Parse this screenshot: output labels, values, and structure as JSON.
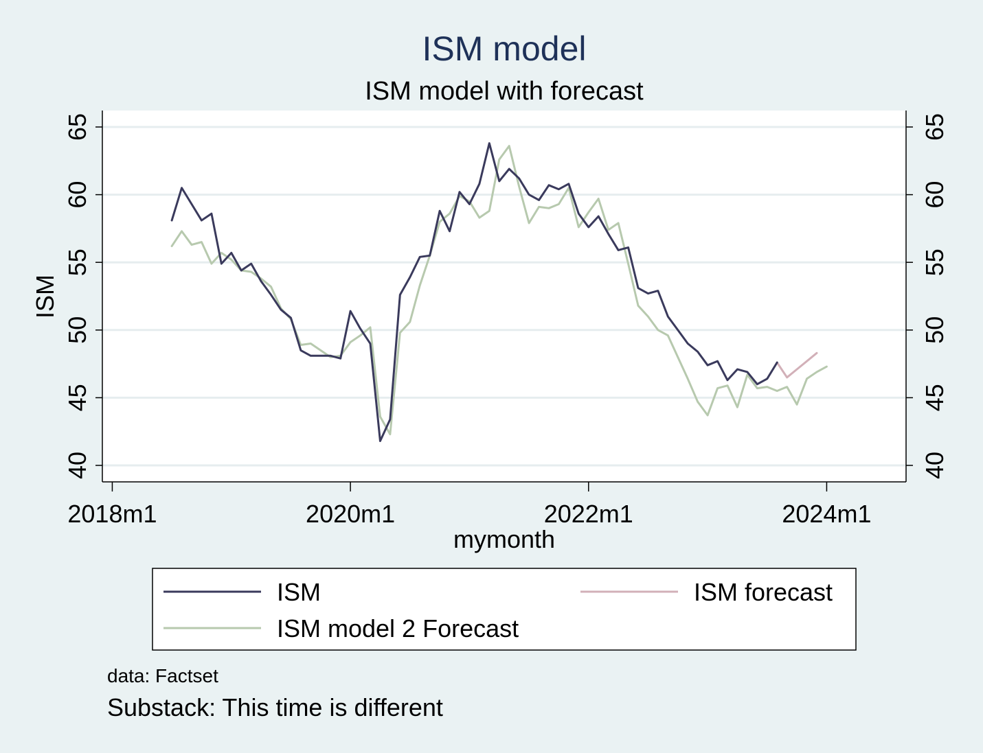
{
  "chart_data": {
    "type": "line",
    "title": "ISM model",
    "subtitle": "ISM model with forecast",
    "xlabel": "mymonth",
    "ylabel": "ISM",
    "ylim": [
      40,
      65
    ],
    "yticks": [
      40,
      45,
      50,
      55,
      60,
      65
    ],
    "xticks": [
      {
        "label": "2018m1",
        "year": 2018,
        "month": 1
      },
      {
        "label": "2020m1",
        "year": 2020,
        "month": 1
      },
      {
        "label": "2022m1",
        "year": 2022,
        "month": 1
      },
      {
        "label": "2024m1",
        "year": 2024,
        "month": 1
      }
    ],
    "xrange": {
      "start": {
        "year": 2017,
        "month": 12
      },
      "end": {
        "year": 2024,
        "month": 9
      }
    },
    "grid": true,
    "legend_position": "bottom",
    "series": [
      {
        "name": "ISM",
        "color": "#3a3a5c",
        "start": {
          "year": 2018,
          "month": 7
        },
        "values": [
          58.1,
          60.5,
          59.3,
          58.1,
          58.6,
          54.9,
          55.7,
          54.4,
          54.9,
          53.6,
          52.6,
          51.5,
          50.9,
          48.5,
          48.1,
          48.1,
          48.1,
          47.9,
          51.4,
          50.1,
          49.0,
          41.8,
          43.4,
          52.6,
          53.9,
          55.4,
          55.5,
          58.8,
          57.3,
          60.2,
          59.3,
          60.8,
          63.8,
          61.0,
          61.9,
          61.2,
          60.0,
          59.6,
          60.7,
          60.4,
          60.8,
          58.6,
          57.6,
          58.4,
          57.1,
          55.9,
          56.1,
          53.1,
          52.7,
          52.9,
          51.0,
          50.0,
          49.0,
          48.4,
          47.4,
          47.7,
          46.3,
          47.1,
          46.9,
          46.0,
          46.4,
          47.6
        ]
      },
      {
        "name": "ISM forecast",
        "color": "#d2b0b8",
        "start": {
          "year": 2023,
          "month": 8
        },
        "values": [
          47.6,
          46.5,
          47.1,
          47.7,
          48.3
        ]
      },
      {
        "name": "ISM model 2 Forecast",
        "color": "#b7c9ae",
        "start": {
          "year": 2018,
          "month": 7
        },
        "values": [
          56.2,
          57.3,
          56.3,
          56.5,
          54.9,
          55.7,
          55.2,
          54.4,
          54.3,
          53.8,
          53.2,
          51.6,
          50.8,
          48.9,
          49.0,
          48.5,
          48.0,
          48.1,
          49.1,
          49.6,
          50.2,
          43.6,
          42.3,
          49.8,
          50.6,
          53.3,
          55.5,
          58.0,
          58.6,
          59.9,
          59.5,
          58.3,
          58.8,
          62.6,
          63.6,
          60.6,
          57.9,
          59.1,
          59.0,
          59.3,
          60.5,
          57.6,
          58.7,
          59.7,
          57.4,
          57.9,
          54.9,
          51.8,
          51.0,
          50.0,
          49.6,
          48.0,
          46.4,
          44.7,
          43.7,
          45.7,
          45.9,
          44.3,
          46.7,
          45.7,
          45.8,
          45.5,
          45.8,
          44.5,
          46.4,
          46.9,
          47.3
        ]
      }
    ]
  },
  "notes": {
    "data": "data: Factset",
    "source": "Substack: This time is different"
  }
}
